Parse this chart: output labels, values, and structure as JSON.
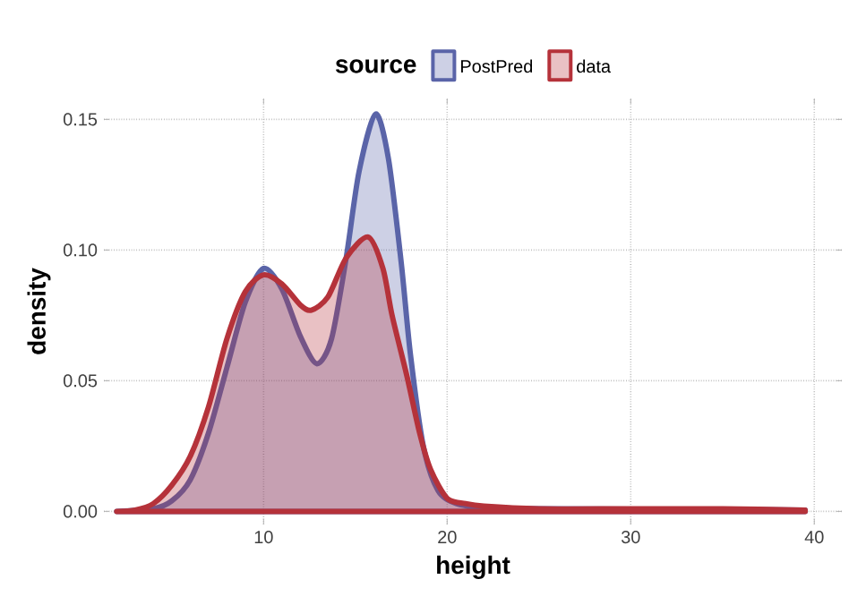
{
  "chart_data": {
    "type": "area",
    "xlabel": "height",
    "ylabel": "density",
    "legend_title": "source",
    "legend": "top",
    "grid": true,
    "xlim": [
      1.3,
      41.5
    ],
    "ylim": [
      -0.005,
      0.158
    ],
    "xticks": [
      10,
      20,
      30,
      40
    ],
    "yticks": [
      {
        "value": 0,
        "label": "0.00"
      },
      {
        "value": 0.05,
        "label": "0.05"
      },
      {
        "value": 0.1,
        "label": "0.10"
      },
      {
        "value": 0.15,
        "label": "0.15"
      }
    ],
    "series": [
      {
        "name": "PostPred",
        "color": "#5a64a8",
        "x": [
          2,
          4,
          5,
          6,
          7,
          8,
          9,
          10,
          11,
          12,
          12.9,
          13.7,
          14.5,
          15.2,
          16.1,
          16.8,
          17.5,
          18,
          18.7,
          19.5,
          20.5,
          22,
          25,
          30,
          35,
          39.5
        ],
        "values": [
          0,
          0.001,
          0.004,
          0.012,
          0.03,
          0.055,
          0.08,
          0.093,
          0.085,
          0.067,
          0.0565,
          0.066,
          0.097,
          0.13,
          0.152,
          0.135,
          0.095,
          0.06,
          0.025,
          0.008,
          0.003,
          0.0015,
          0.001,
          0.0008,
          0.0007,
          0.0005
        ]
      },
      {
        "name": "data",
        "color": "#b5323a",
        "x": [
          2,
          3,
          4,
          5,
          6,
          7,
          8,
          9,
          10,
          11,
          12,
          12.6,
          13.5,
          14.5,
          15.7,
          16.5,
          17,
          17.8,
          18.5,
          19.1,
          20,
          21,
          22,
          25,
          30,
          35,
          39.5
        ],
        "values": [
          0,
          0.0005,
          0.003,
          0.01,
          0.021,
          0.04,
          0.066,
          0.084,
          0.0905,
          0.087,
          0.079,
          0.077,
          0.082,
          0.097,
          0.105,
          0.093,
          0.075,
          0.052,
          0.03,
          0.016,
          0.005,
          0.003,
          0.002,
          0.001,
          0.001,
          0.001,
          0.0005
        ]
      }
    ]
  }
}
